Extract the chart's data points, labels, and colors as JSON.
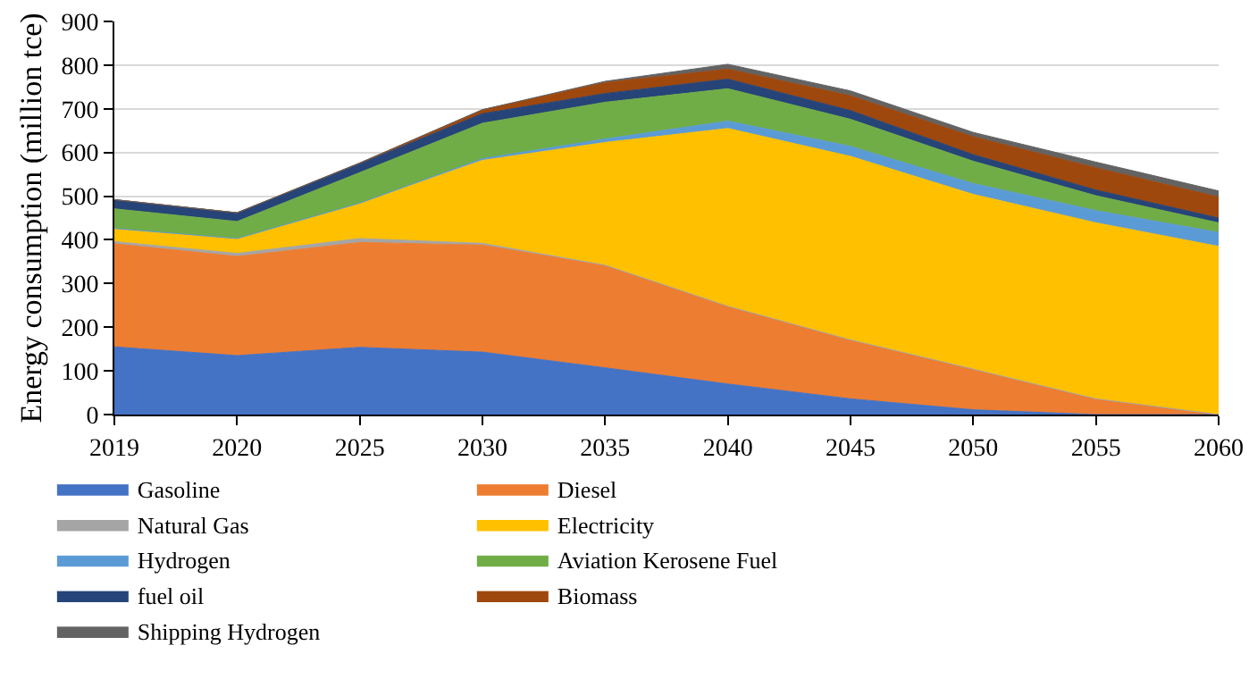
{
  "chart_data": {
    "type": "area",
    "stacked": true,
    "ylabel": "Energy consumption (million tce)",
    "categories": [
      "2019",
      "2020",
      "2025",
      "2030",
      "2035",
      "2040",
      "2045",
      "2050",
      "2055",
      "2060"
    ],
    "ylim": [
      0,
      900
    ],
    "yticks": [
      0,
      100,
      200,
      300,
      400,
      500,
      600,
      700,
      800,
      900
    ],
    "grid": "y",
    "legend": "bottom",
    "series": [
      {
        "name": "Gasoline",
        "color": "#4472c4",
        "values": [
          155,
          135,
          154,
          143,
          107,
          70,
          36,
          11,
          0,
          0
        ]
      },
      {
        "name": "Diesel",
        "color": "#ed7d31",
        "values": [
          236,
          227,
          240,
          245,
          234,
          178,
          135,
          93,
          36,
          0
        ]
      },
      {
        "name": "Natural Gas",
        "color": "#a5a5a5",
        "values": [
          5,
          7,
          9,
          4,
          1,
          0,
          0,
          0,
          0,
          0
        ]
      },
      {
        "name": "Electricity",
        "color": "#ffc000",
        "values": [
          30,
          34,
          81,
          190,
          281,
          407,
          420,
          400,
          403,
          385
        ]
      },
      {
        "name": "Hydrogen",
        "color": "#5b9bd5",
        "values": [
          0,
          0,
          0,
          4,
          8,
          17,
          23,
          25,
          28,
          32
        ]
      },
      {
        "name": "Aviation Kerosene Fuel",
        "color": "#70ad47",
        "values": [
          45,
          39,
          70,
          81,
          84,
          74,
          62,
          51,
          34,
          22
        ]
      },
      {
        "name": "fuel oil",
        "color": "#264478",
        "values": [
          21,
          20,
          20,
          22,
          20,
          22,
          20,
          15,
          13,
          11
        ]
      },
      {
        "name": "Biomass",
        "color": "#9e480e",
        "values": [
          0,
          0,
          2,
          9,
          25,
          23,
          34,
          41,
          51,
          48
        ]
      },
      {
        "name": "Shipping Hydrogen",
        "color": "#636363",
        "values": [
          0,
          0,
          0,
          0,
          3,
          11,
          11,
          10,
          13,
          14
        ]
      }
    ]
  }
}
